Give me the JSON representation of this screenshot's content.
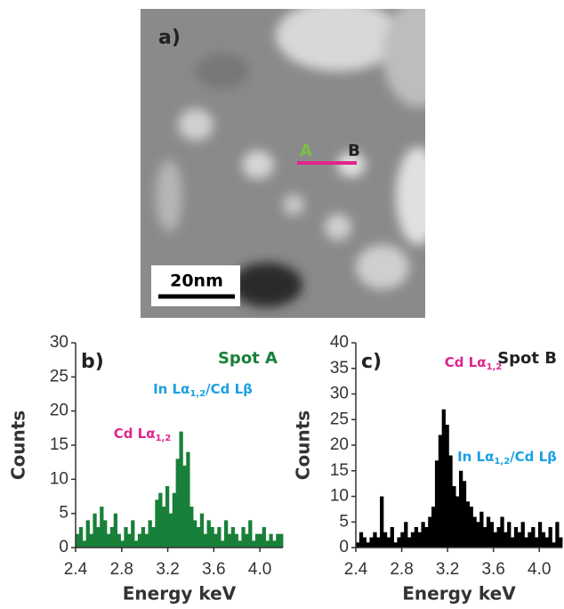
{
  "image": {
    "panel_label": "a)",
    "marker_a": "A",
    "marker_b": "B",
    "scale_bar": "20nm"
  },
  "chart_data": [
    {
      "type": "bar",
      "panel_label": "b)",
      "spot_label": "Spot A",
      "color": "#188038",
      "xlabel": "Energy keV",
      "ylabel": "Counts",
      "x": [
        2.4,
        2.43,
        2.46,
        2.49,
        2.52,
        2.55,
        2.58,
        2.61,
        2.64,
        2.67,
        2.7,
        2.73,
        2.76,
        2.79,
        2.82,
        2.85,
        2.88,
        2.91,
        2.94,
        2.97,
        3,
        3.03,
        3.06,
        3.09,
        3.12,
        3.15,
        3.18,
        3.21,
        3.24,
        3.27,
        3.3,
        3.33,
        3.36,
        3.39,
        3.42,
        3.45,
        3.48,
        3.51,
        3.54,
        3.57,
        3.6,
        3.63,
        3.66,
        3.69,
        3.72,
        3.75,
        3.78,
        3.81,
        3.84,
        3.87,
        3.9,
        3.93,
        3.96,
        3.99,
        4.02,
        4.05,
        4.08,
        4.11,
        4.14,
        4.17
      ],
      "values": [
        2,
        3,
        1,
        4,
        2,
        5,
        3,
        6,
        4,
        2,
        3,
        5,
        2,
        1,
        3,
        2,
        4,
        1,
        2,
        3,
        2,
        4,
        3,
        7,
        8,
        6,
        9,
        5,
        8,
        13,
        17,
        12,
        14,
        6,
        4,
        3,
        5,
        2,
        4,
        3,
        2,
        3,
        1,
        4,
        2,
        3,
        2,
        1,
        3,
        2,
        4,
        1,
        2,
        2,
        3,
        1,
        2,
        1,
        2,
        2
      ],
      "xlim": [
        2.4,
        4.2
      ],
      "xticks": [
        2.4,
        2.8,
        3.2,
        3.6,
        {
          "value": 4,
          "label": "4.0"
        }
      ],
      "ylim": [
        0,
        30
      ],
      "yticks": [
        0,
        5,
        10,
        15,
        20,
        25,
        30
      ],
      "annotations": [
        {
          "text": "In Lα",
          "sub": "1,2",
          "rest": "/Cd Lβ",
          "color": "#1ba1e2"
        },
        {
          "text": "Cd Lα",
          "sub": "1,2",
          "color": "#e0258c"
        }
      ]
    },
    {
      "type": "bar",
      "panel_label": "c)",
      "spot_label": "Spot B",
      "color": "#000000",
      "xlabel": "Energy keV",
      "ylabel": "Counts",
      "x": [
        2.4,
        2.43,
        2.46,
        2.49,
        2.52,
        2.55,
        2.58,
        2.61,
        2.64,
        2.67,
        2.7,
        2.73,
        2.76,
        2.79,
        2.82,
        2.85,
        2.88,
        2.91,
        2.94,
        2.97,
        3,
        3.03,
        3.06,
        3.09,
        3.12,
        3.15,
        3.18,
        3.21,
        3.24,
        3.27,
        3.3,
        3.33,
        3.36,
        3.39,
        3.42,
        3.45,
        3.48,
        3.51,
        3.54,
        3.57,
        3.6,
        3.63,
        3.66,
        3.69,
        3.72,
        3.75,
        3.78,
        3.81,
        3.84,
        3.87,
        3.9,
        3.93,
        3.96,
        3.99,
        4.02,
        4.05,
        4.08,
        4.11,
        4.14,
        4.17
      ],
      "values": [
        1,
        3,
        2,
        1,
        2,
        3,
        2,
        10,
        3,
        2,
        4,
        1,
        2,
        3,
        5,
        2,
        3,
        4,
        3,
        5,
        4,
        6,
        8,
        17,
        22,
        27,
        24,
        18,
        12,
        10,
        15,
        13,
        9,
        8,
        6,
        5,
        7,
        4,
        6,
        5,
        3,
        4,
        6,
        3,
        5,
        2,
        4,
        3,
        5,
        2,
        3,
        4,
        2,
        5,
        3,
        2,
        4,
        1,
        5,
        2
      ],
      "xlim": [
        2.4,
        4.2
      ],
      "xticks": [
        2.4,
        2.8,
        3.2,
        3.6,
        {
          "value": 4,
          "label": "4.0"
        }
      ],
      "ylim": [
        0,
        40
      ],
      "yticks": [
        0,
        5,
        10,
        15,
        20,
        25,
        30,
        35,
        40
      ],
      "annotations": [
        {
          "text": "Cd Lα",
          "sub": "1,2",
          "color": "#e0258c"
        },
        {
          "text": "In Lα",
          "sub": "1,2",
          "rest": "/Cd Lβ",
          "color": "#1ba1e2"
        }
      ]
    }
  ]
}
